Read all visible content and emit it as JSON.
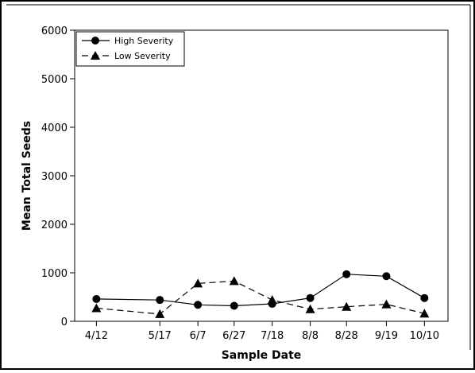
{
  "chart_data": {
    "type": "line",
    "title": "",
    "xlabel": "Sample Date",
    "ylabel": "Mean Total Seeds",
    "x": [
      "4/12",
      "5/17",
      "6/7",
      "6/27",
      "7/18",
      "8/8",
      "8/28",
      "9/19",
      "10/10"
    ],
    "x_day_of_year": [
      102,
      137,
      158,
      178,
      199,
      220,
      240,
      262,
      283
    ],
    "ylim": [
      0,
      6000
    ],
    "yticks": [
      0,
      1000,
      2000,
      3000,
      4000,
      5000,
      6000
    ],
    "grid": false,
    "legend_position": "top-left",
    "series": [
      {
        "name": "High Severity",
        "marker": "circle",
        "line_style": "solid",
        "color": "#000000",
        "values": [
          460,
          440,
          340,
          320,
          360,
          480,
          970,
          930,
          480
        ]
      },
      {
        "name": "Low Severity",
        "marker": "triangle",
        "line_style": "dashed",
        "color": "#000000",
        "values": [
          270,
          150,
          780,
          830,
          440,
          250,
          300,
          350,
          160
        ]
      }
    ]
  }
}
